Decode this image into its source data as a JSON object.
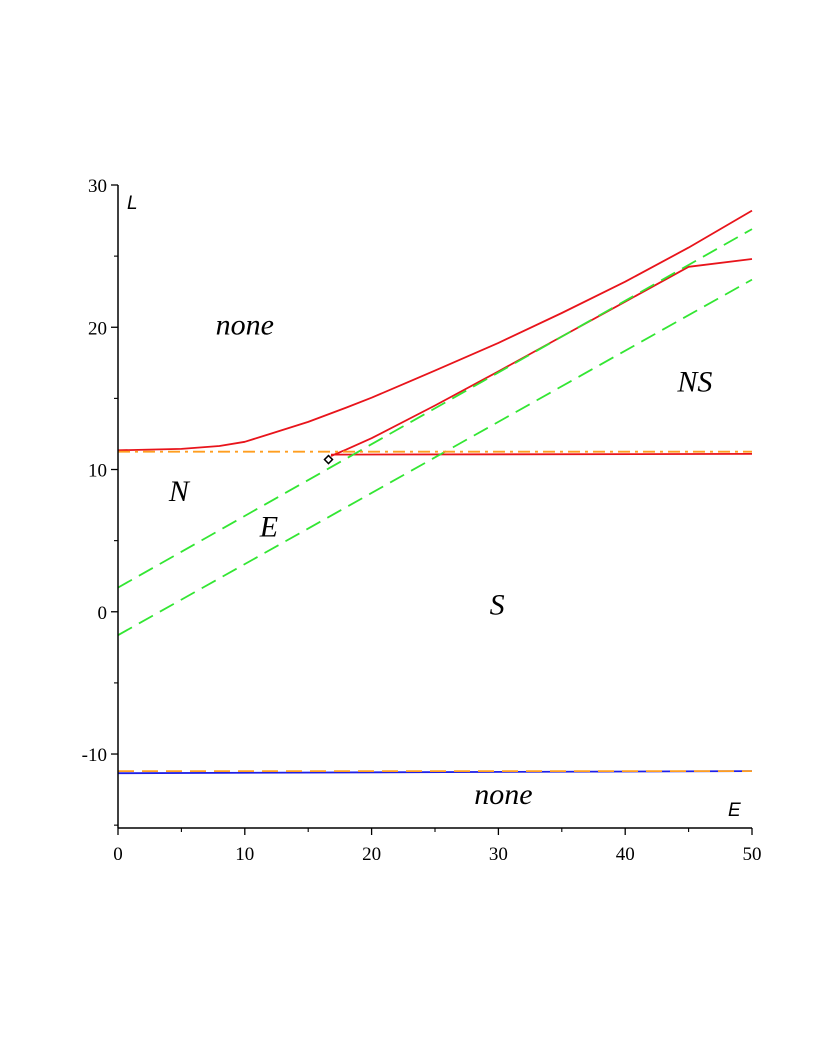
{
  "chart_data": {
    "type": "line",
    "xlabel": "E",
    "ylabel": "L",
    "xlim": [
      0,
      50
    ],
    "ylim": [
      -15.2,
      30
    ],
    "x_ticks": [
      0,
      10,
      20,
      30,
      40,
      50
    ],
    "x_tick_labels": [
      "0",
      "10",
      "20",
      "30",
      "40",
      "50"
    ],
    "y_ticks": [
      -10,
      0,
      10,
      20,
      30
    ],
    "y_tick_labels": [
      "-10",
      "0",
      "10",
      "20",
      "30"
    ],
    "grid": false,
    "colors": {
      "red": "#e8141b",
      "green": "#33e633",
      "orange": "#ff9e1f",
      "blue": "#1f1fe6"
    },
    "series": [
      {
        "color": "red",
        "style": "solid",
        "x": [
          0,
          5,
          8,
          10,
          12,
          15,
          18,
          20,
          25,
          30,
          35,
          40,
          45,
          50
        ],
        "y": [
          11.35,
          11.45,
          11.65,
          11.95,
          12.5,
          13.35,
          14.35,
          15.05,
          16.95,
          18.9,
          21.0,
          23.2,
          25.6,
          28.2
        ]
      },
      {
        "color": "red",
        "style": "solid",
        "x": [
          16.8,
          18,
          20,
          25,
          30,
          35,
          40,
          45,
          50
        ],
        "y": [
          10.95,
          11.4,
          12.2,
          14.5,
          16.9,
          19.35,
          21.8,
          24.25,
          24.8
        ]
      },
      {
        "color": "red",
        "style": "solid",
        "x": [
          16.8,
          50
        ],
        "y": [
          11.05,
          11.1
        ]
      },
      {
        "color": "green",
        "style": "dashed",
        "x": [
          0,
          50
        ],
        "y": [
          1.7,
          26.9
        ]
      },
      {
        "color": "green",
        "style": "dashed",
        "x": [
          0,
          50
        ],
        "y": [
          -1.65,
          23.35
        ]
      },
      {
        "color": "orange",
        "style": "dashdot",
        "x": [
          0,
          50
        ],
        "y": [
          11.25,
          11.25
        ]
      },
      {
        "color": "blue",
        "style": "solid",
        "x": [
          0,
          50
        ],
        "y": [
          -11.35,
          -11.2
        ]
      },
      {
        "color": "orange",
        "style": "dashed",
        "x": [
          0,
          50
        ],
        "y": [
          -11.2,
          -11.2
        ]
      }
    ],
    "markers": [
      {
        "x": 16.6,
        "y": 10.7,
        "shape": "diamond",
        "color": "#000000"
      }
    ],
    "annotations": [
      {
        "text": "none",
        "x": 10,
        "y": 19.5
      },
      {
        "text": "NS",
        "x": 45.5,
        "y": 15.5
      },
      {
        "text": "N",
        "x": 4.8,
        "y": 7.8
      },
      {
        "text": "E",
        "x": 11.9,
        "y": 5.3
      },
      {
        "text": "S",
        "x": 29.9,
        "y": -0.2
      },
      {
        "text": "none",
        "x": 30.4,
        "y": -13.5
      }
    ]
  }
}
